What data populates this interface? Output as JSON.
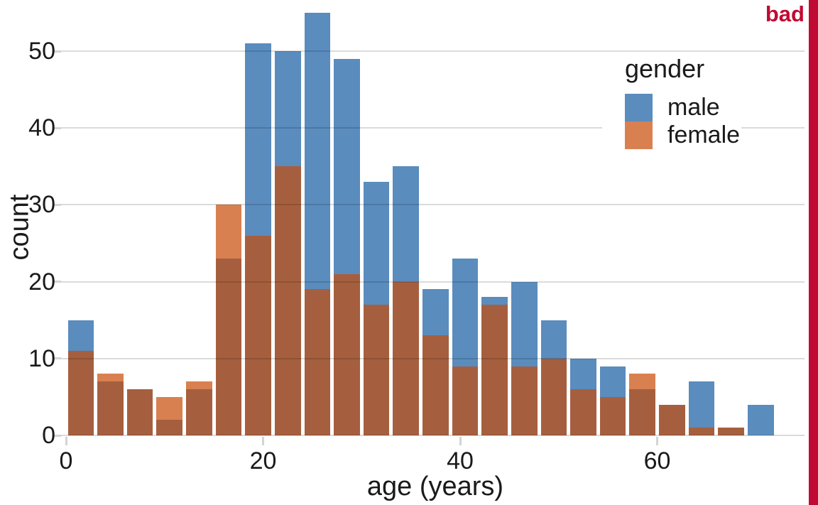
{
  "figure": {
    "stamp": "bad",
    "stamp_color": "#C10A33",
    "background": "#ffffff"
  },
  "chart_data": {
    "type": "bar",
    "subtype": "overlapping-histogram",
    "title": "",
    "xlabel": "age (years)",
    "ylabel": "count",
    "x_ticks": [
      0,
      20,
      40,
      60
    ],
    "y_ticks": [
      0,
      10,
      20,
      30,
      40,
      50
    ],
    "xlim": [
      0,
      75
    ],
    "ylim": [
      0,
      55
    ],
    "grid": "horizontal",
    "bin_width": 3,
    "bin_starts": [
      0,
      3,
      6,
      9,
      12,
      15,
      18,
      21,
      24,
      27,
      30,
      33,
      36,
      39,
      42,
      45,
      48,
      51,
      54,
      57,
      60,
      63,
      66,
      69
    ],
    "series": [
      {
        "name": "male",
        "color": "#5A8CBE",
        "values": [
          15,
          7,
          6,
          2,
          6,
          23,
          51,
          50,
          55,
          49,
          33,
          35,
          19,
          23,
          18,
          20,
          15,
          10,
          9,
          6,
          4,
          7,
          1,
          4
        ]
      },
      {
        "name": "female",
        "color": "#D98050",
        "values": [
          11,
          8,
          6,
          5,
          7,
          30,
          26,
          35,
          19,
          21,
          17,
          20,
          13,
          9,
          17,
          9,
          10,
          6,
          5,
          8,
          4,
          1,
          1,
          0
        ]
      }
    ],
    "overlap_color": "#A65F3E",
    "legend": {
      "title": "gender",
      "position": "top-right",
      "items": [
        "male",
        "female"
      ]
    }
  }
}
